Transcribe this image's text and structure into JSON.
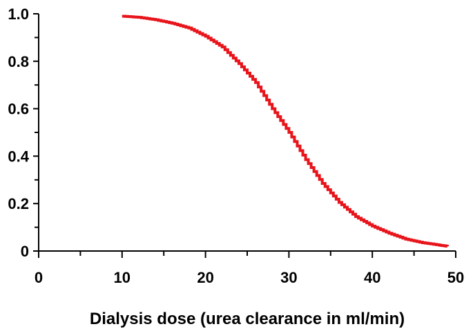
{
  "chart_data": {
    "type": "line",
    "title": "",
    "xlabel": "Dialysis dose (urea clearance in ml/min)",
    "ylabel": "",
    "xlim": [
      0,
      50
    ],
    "ylim": [
      0,
      1.0
    ],
    "x_ticks": [
      0,
      10,
      20,
      30,
      40,
      50
    ],
    "x_tick_labels": [
      "0",
      "10",
      "20",
      "30",
      "40",
      "50"
    ],
    "y_ticks": [
      0,
      0.2,
      0.4,
      0.6,
      0.8,
      1.0
    ],
    "y_tick_labels": [
      "0",
      "0.2",
      "0.4",
      "0.6",
      "0.8",
      "1.0"
    ],
    "grid": false,
    "series": [
      {
        "color": "#e8141b",
        "x": [
          10,
          12,
          14,
          16,
          18,
          20,
          22,
          24,
          26,
          28,
          30,
          32,
          34,
          36,
          38,
          40,
          42,
          44,
          46,
          48,
          49
        ],
        "y": [
          0.99,
          0.985,
          0.975,
          0.96,
          0.94,
          0.905,
          0.86,
          0.79,
          0.71,
          0.6,
          0.5,
          0.385,
          0.285,
          0.205,
          0.145,
          0.105,
          0.075,
          0.05,
          0.035,
          0.025,
          0.02
        ]
      }
    ]
  }
}
